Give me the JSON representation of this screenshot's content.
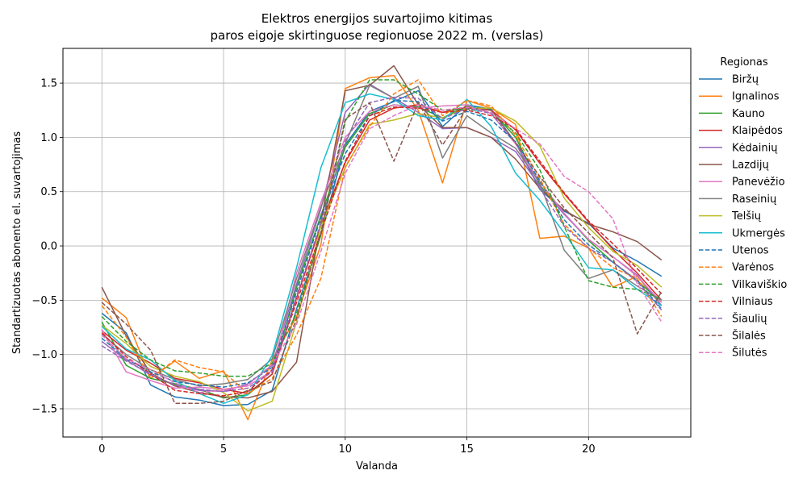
{
  "chart_data": {
    "type": "line",
    "title": "Elektros energijos suvartojimo kitimas",
    "subtitle": "paros eigoje skirtinguose regionuose 2022 m. (verslas)",
    "xlabel": "Valanda",
    "ylabel": "Standartizuotas abonento el. suvartojimas",
    "xlim": [
      -1.6,
      24.2
    ],
    "ylim": [
      -1.76,
      1.82
    ],
    "xticks": [
      0,
      5,
      10,
      15,
      20
    ],
    "yticks": [
      -1.5,
      -1.0,
      -0.5,
      0.0,
      0.5,
      1.0,
      1.5
    ],
    "xtick_labels": [
      "0",
      "5",
      "10",
      "15",
      "20"
    ],
    "ytick_labels": [
      "−1.5",
      "−1.0",
      "−0.5",
      "0.0",
      "0.5",
      "1.0",
      "1.5"
    ],
    "grid": true,
    "legend_title": "Regionas",
    "legend_position": "right",
    "x": [
      0,
      1,
      2,
      3,
      4,
      5,
      6,
      7,
      8,
      9,
      10,
      11,
      12,
      13,
      14,
      15,
      16,
      17,
      18,
      19,
      20,
      21,
      22,
      23
    ],
    "series": [
      {
        "name": "Biržų",
        "color": "#1f77b4",
        "dash": "solid",
        "values": [
          -0.62,
          -0.8,
          -1.28,
          -1.39,
          -1.42,
          -1.47,
          -1.46,
          -1.33,
          -0.58,
          0.1,
          0.93,
          1.24,
          1.33,
          1.43,
          1.1,
          1.3,
          1.26,
          0.95,
          0.52,
          0.32,
          0.21,
          -0.02,
          -0.14,
          -0.28
        ]
      },
      {
        "name": "Ignalinos",
        "color": "#ff7f0e",
        "dash": "solid",
        "values": [
          -0.48,
          -0.66,
          -1.22,
          -1.06,
          -1.22,
          -1.15,
          -1.6,
          -1.05,
          -0.65,
          0.01,
          1.45,
          1.55,
          1.57,
          1.25,
          0.58,
          1.34,
          1.27,
          1.12,
          0.07,
          0.09,
          -0.02,
          -0.38,
          -0.28,
          -0.55
        ]
      },
      {
        "name": "Kauno",
        "color": "#2ca02c",
        "dash": "solid",
        "values": [
          -0.7,
          -1.1,
          -1.22,
          -1.27,
          -1.32,
          -1.4,
          -1.37,
          -1.18,
          -0.38,
          0.28,
          0.91,
          1.22,
          1.3,
          1.28,
          1.18,
          1.29,
          1.25,
          1.0,
          0.56,
          0.3,
          0.05,
          -0.15,
          -0.32,
          -0.52
        ]
      },
      {
        "name": "Klaipėdos",
        "color": "#d62728",
        "dash": "solid",
        "values": [
          -0.78,
          -0.96,
          -1.08,
          -1.22,
          -1.26,
          -1.32,
          -1.36,
          -1.18,
          -0.48,
          0.19,
          0.77,
          1.16,
          1.27,
          1.3,
          1.23,
          1.28,
          1.25,
          1.07,
          0.76,
          0.48,
          0.22,
          -0.03,
          -0.25,
          -0.5
        ]
      },
      {
        "name": "Kėdainių",
        "color": "#9467bd",
        "dash": "solid",
        "values": [
          -0.88,
          -1.05,
          -1.19,
          -1.28,
          -1.33,
          -1.34,
          -1.27,
          -1.1,
          -0.35,
          0.34,
          1.23,
          1.49,
          1.36,
          1.23,
          1.08,
          1.09,
          1.0,
          0.87,
          0.55,
          0.29,
          0.06,
          -0.1,
          -0.27,
          -0.55
        ]
      },
      {
        "name": "Lazdijų",
        "color": "#8c564b",
        "dash": "solid",
        "values": [
          -0.38,
          -0.83,
          -1.17,
          -1.29,
          -1.35,
          -1.39,
          -1.4,
          -1.34,
          -1.07,
          0.22,
          1.43,
          1.48,
          1.66,
          1.3,
          1.09,
          1.09,
          1.0,
          0.8,
          0.53,
          0.33,
          0.2,
          0.13,
          0.04,
          -0.13
        ]
      },
      {
        "name": "Panevėžio",
        "color": "#e377c2",
        "dash": "solid",
        "values": [
          -0.77,
          -1.16,
          -1.24,
          -1.31,
          -1.3,
          -1.32,
          -1.29,
          -1.15,
          -0.25,
          0.4,
          1.0,
          1.24,
          1.3,
          1.27,
          1.29,
          1.3,
          1.22,
          0.94,
          0.59,
          0.3,
          0.06,
          -0.1,
          -0.28,
          -0.52
        ]
      },
      {
        "name": "Raseinių",
        "color": "#7f7f7f",
        "dash": "solid",
        "values": [
          -0.81,
          -1.0,
          -1.14,
          -1.23,
          -1.29,
          -1.27,
          -1.23,
          -1.04,
          -0.3,
          0.36,
          0.94,
          1.48,
          1.36,
          1.47,
          0.81,
          1.2,
          1.04,
          0.9,
          0.58,
          -0.04,
          -0.3,
          -0.22,
          -0.37,
          -0.5
        ]
      },
      {
        "name": "Telšių",
        "color": "#bcbd22",
        "dash": "solid",
        "values": [
          -0.73,
          -0.9,
          -1.11,
          -1.2,
          -1.25,
          -1.35,
          -1.52,
          -1.43,
          -0.7,
          0.18,
          0.72,
          1.12,
          1.16,
          1.22,
          1.18,
          1.27,
          1.27,
          1.15,
          0.92,
          0.44,
          0.17,
          -0.05,
          -0.18,
          -0.38
        ]
      },
      {
        "name": "Ukmergės",
        "color": "#17becf",
        "dash": "solid",
        "values": [
          -0.74,
          -0.95,
          -1.05,
          -1.24,
          -1.36,
          -1.45,
          -1.37,
          -1.01,
          -0.2,
          0.72,
          1.32,
          1.4,
          1.35,
          1.2,
          1.16,
          1.35,
          1.1,
          0.67,
          0.42,
          0.12,
          -0.2,
          -0.22,
          -0.4,
          -0.55
        ]
      },
      {
        "name": "Utenos",
        "color": "#1f77b4",
        "dash": "dashed",
        "values": [
          -0.85,
          -1.04,
          -1.16,
          -1.25,
          -1.28,
          -1.3,
          -1.26,
          -1.12,
          -0.42,
          0.26,
          0.85,
          1.2,
          1.34,
          1.33,
          1.15,
          1.24,
          1.16,
          0.96,
          0.6,
          0.24,
          0.01,
          -0.15,
          -0.32,
          -0.58
        ]
      },
      {
        "name": "Varėnos",
        "color": "#ff7f0e",
        "dash": "dashed",
        "values": [
          -0.55,
          -0.84,
          -1.22,
          -1.05,
          -1.12,
          -1.16,
          -1.36,
          -1.22,
          -0.82,
          -0.3,
          0.73,
          1.1,
          1.4,
          1.53,
          1.2,
          1.34,
          1.29,
          1.02,
          0.62,
          0.2,
          -0.02,
          -0.2,
          -0.3,
          -0.65
        ]
      },
      {
        "name": "Vilkaviškio",
        "color": "#2ca02c",
        "dash": "dashed",
        "values": [
          -0.65,
          -0.88,
          -1.05,
          -1.15,
          -1.17,
          -1.2,
          -1.2,
          -1.08,
          -0.62,
          0.1,
          1.15,
          1.53,
          1.53,
          1.4,
          1.25,
          1.26,
          1.23,
          1.04,
          0.7,
          0.18,
          -0.32,
          -0.38,
          -0.4,
          -0.49
        ]
      },
      {
        "name": "Vilniaus",
        "color": "#d62728",
        "dash": "dashed",
        "values": [
          -0.8,
          -1.02,
          -1.18,
          -1.33,
          -1.36,
          -1.38,
          -1.34,
          -1.14,
          -0.52,
          0.12,
          0.78,
          1.2,
          1.28,
          1.27,
          1.23,
          1.25,
          1.2,
          1.08,
          0.78,
          0.49,
          0.23,
          0.02,
          -0.21,
          -0.44
        ]
      },
      {
        "name": "Šiaulių",
        "color": "#9467bd",
        "dash": "dashed",
        "values": [
          -0.92,
          -1.06,
          -1.18,
          -1.28,
          -1.32,
          -1.34,
          -1.31,
          -1.16,
          -0.46,
          0.21,
          0.97,
          1.32,
          1.37,
          1.36,
          1.17,
          1.27,
          1.22,
          0.95,
          0.53,
          0.18,
          -0.02,
          -0.15,
          -0.33,
          -0.59
        ]
      },
      {
        "name": "Šilalės",
        "color": "#8c564b",
        "dash": "dashed",
        "values": [
          -0.52,
          -0.72,
          -0.96,
          -1.45,
          -1.45,
          -1.43,
          -1.33,
          -1.25,
          -0.67,
          0.12,
          1.17,
          1.32,
          0.78,
          1.32,
          0.93,
          1.27,
          1.25,
          0.95,
          0.64,
          0.35,
          0.12,
          -0.11,
          -0.81,
          -0.42
        ]
      },
      {
        "name": "Šilutės",
        "color": "#e377c2",
        "dash": "dashed",
        "values": [
          -0.82,
          -1.04,
          -1.14,
          -1.26,
          -1.35,
          -1.33,
          -1.28,
          -1.09,
          -0.72,
          -0.05,
          0.67,
          1.08,
          1.2,
          1.3,
          1.25,
          1.28,
          1.23,
          1.08,
          0.94,
          0.64,
          0.5,
          0.25,
          -0.35,
          -0.7
        ]
      }
    ]
  }
}
